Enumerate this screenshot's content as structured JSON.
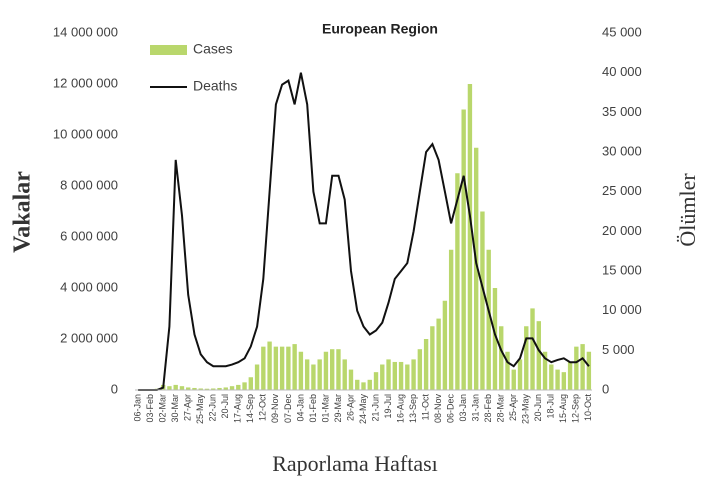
{
  "chart_data": {
    "type": "bar-line",
    "title": "European Region",
    "y_label": "Vakalar",
    "y2_label": "Ölümler",
    "x_label": "Raporlama Haftası",
    "categories": [
      "06-Jan",
      null,
      "03-Feb",
      null,
      "02-Mar",
      null,
      "30-Mar",
      null,
      "27-Apr",
      null,
      "25-May",
      null,
      "22-Jun",
      null,
      "20-Jul",
      null,
      "17-Aug",
      null,
      "14-Sep",
      null,
      "12-Oct",
      null,
      "09-Nov",
      null,
      "07-Dec",
      null,
      "04-Jan",
      null,
      "01-Feb",
      null,
      "01-Mar",
      null,
      "29-Mar",
      null,
      "26-Apr",
      null,
      "24-May",
      null,
      "21-Jun",
      null,
      "19-Jul",
      null,
      "16-Aug",
      null,
      "13-Sep",
      null,
      "11-Oct",
      null,
      "08-Nov",
      null,
      "06-Dec",
      null,
      "03-Jan",
      null,
      "31-Jan",
      null,
      "28-Feb",
      null,
      "28-Mar",
      null,
      "25-Apr",
      null,
      "23-May",
      null,
      "20-Jun",
      null,
      "18-Jul",
      null,
      "15-Aug",
      null,
      "12-Sep",
      null,
      "10-Oct"
    ],
    "series": [
      {
        "name": "Cases",
        "kind": "bar",
        "color": "#b9d76c",
        "values": [
          0,
          0,
          0,
          50000,
          200000,
          150000,
          200000,
          150000,
          100000,
          80000,
          60000,
          50000,
          60000,
          80000,
          100000,
          150000,
          200000,
          300000,
          500000,
          1000000,
          1700000,
          1900000,
          1700000,
          1700000,
          1700000,
          1800000,
          1500000,
          1200000,
          1000000,
          1200000,
          1500000,
          1600000,
          1600000,
          1200000,
          800000,
          400000,
          300000,
          400000,
          700000,
          1000000,
          1200000,
          1100000,
          1100000,
          1000000,
          1200000,
          1600000,
          2000000,
          2500000,
          2800000,
          3500000,
          5500000,
          8500000,
          11000000,
          12000000,
          9500000,
          7000000,
          5500000,
          4000000,
          2500000,
          1500000,
          800000,
          1200000,
          2500000,
          3200000,
          2700000,
          1500000,
          1000000,
          800000,
          700000,
          1100000,
          1700000,
          1800000,
          1500000
        ]
      },
      {
        "name": "Deaths",
        "kind": "line",
        "axis": "y2",
        "color": "#111111",
        "values": [
          0,
          0,
          0,
          0,
          300,
          8000,
          29000,
          22000,
          12000,
          7000,
          4500,
          3500,
          3000,
          3000,
          3000,
          3200,
          3500,
          4000,
          5500,
          8000,
          14000,
          25000,
          36000,
          38500,
          39000,
          36000,
          40000,
          36000,
          25000,
          21000,
          21000,
          27000,
          27000,
          24000,
          15000,
          10000,
          8000,
          7000,
          7500,
          8500,
          11000,
          14000,
          15000,
          16000,
          20000,
          25000,
          30000,
          31000,
          29000,
          25000,
          21000,
          24000,
          27000,
          22000,
          16000,
          13000,
          10000,
          7000,
          5000,
          3500,
          3000,
          4000,
          6500,
          6500,
          5000,
          4000,
          3500,
          3800,
          4000,
          3500,
          3500,
          4000,
          3000
        ]
      }
    ],
    "ylim": [
      0,
      14000000
    ],
    "yticks": [
      0,
      {
        "value": 2000000,
        "label": "2 000 000"
      },
      {
        "value": 4000000,
        "label": "4 000 000"
      },
      {
        "value": 6000000,
        "label": "6 000 000"
      },
      {
        "value": 8000000,
        "label": "8 000 000"
      },
      {
        "value": 10000000,
        "label": "10 000 000"
      },
      {
        "value": 12000000,
        "label": "12 000 000"
      },
      {
        "value": 14000000,
        "label": "14 000 000"
      }
    ],
    "y2lim": [
      0,
      45000
    ],
    "y2ticks": [
      0,
      {
        "value": 5000,
        "label": "5 000"
      },
      {
        "value": 10000,
        "label": "10 000"
      },
      {
        "value": 15000,
        "label": "15 000"
      },
      {
        "value": 20000,
        "label": "20 000"
      },
      {
        "value": 25000,
        "label": "25 000"
      },
      {
        "value": 30000,
        "label": "30 000"
      },
      {
        "value": 35000,
        "label": "35 000"
      },
      {
        "value": 40000,
        "label": "40 000"
      },
      {
        "value": 45000,
        "label": "45 000"
      }
    ],
    "legend": "top-left"
  }
}
